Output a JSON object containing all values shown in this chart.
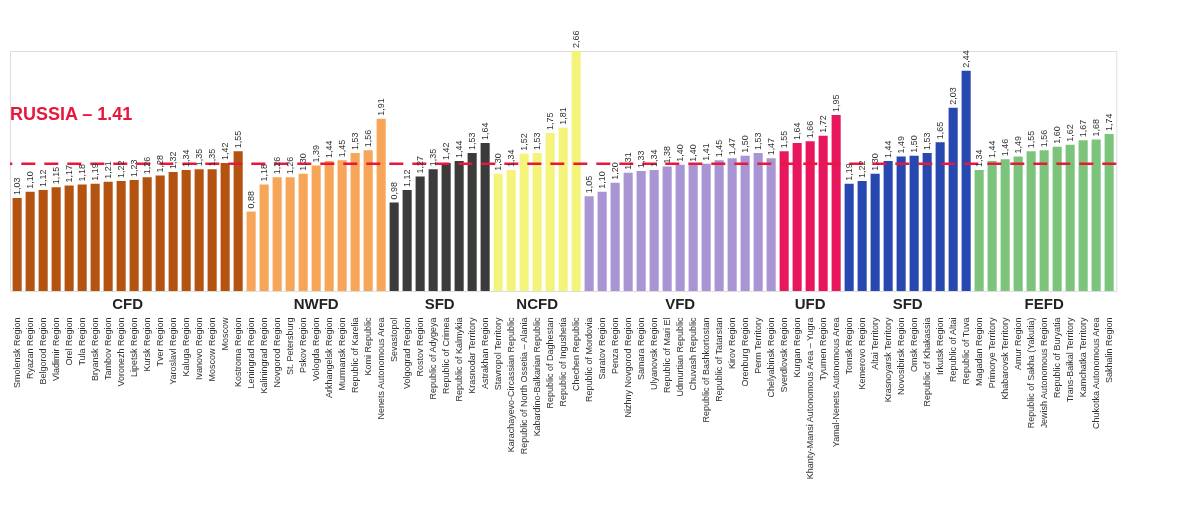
{
  "chart_data": {
    "type": "bar",
    "categories": [
      "Smolensk Region",
      "Ryazan Region",
      "Belgorod Region",
      "Vladimir Region",
      "Orel Region",
      "Tula Region",
      "Bryansk Region",
      "Tambov Region",
      "Voronezh Region",
      "Lipetsk Region",
      "Kursk Region",
      "Tver Region",
      "Yaroslavl Region",
      "Kaluga Region",
      "Ivanovo Region",
      "Moscow Region",
      "Moscow",
      "Kostroma Region",
      "Leningrad Region",
      "Kaliningrad Region",
      "Novgorod Region",
      "St. Petersburg",
      "Pskov Region",
      "Vologda Region",
      "Arkhangelsk Region",
      "Murmansk Region",
      "Republic of Karelia",
      "Komi Republic",
      "Nenets Autonomous Area",
      "Sevastopol",
      "Volgograd Region",
      "Rostov Region",
      "Republic of Adygeya",
      "Republic of Crimea",
      "Republic of Kalmykia",
      "Krasnodar Territory",
      "Astrakhan Region",
      "Stavropol Territory",
      "Karachayevo-Circassian Republic",
      "Republic of North Ossetia – Alania",
      "Kabardino-Balkarian Republic",
      "Republic of Daghestan",
      "Republic of Ingushetia",
      "Chechen Republic",
      "Republic of Mordovia",
      "Saratov Region",
      "Penza Region",
      "Nizhny Novgorod Region",
      "Samara Region",
      "Ulyanovsk Region",
      "Republic of Mari El",
      "Udmurtian Republic",
      "Chuvash Republic",
      "Republic of Bashkortostan",
      "Republic of Tatarstan",
      "Kirov Region",
      "Orenburg Region",
      "Perm Territory",
      "Chelyabinsk Region",
      "Sverdlovsk Region",
      "Kurgan Region",
      "Khanty-Mansi Autonomous Area – Yugra",
      "Tyumen Region",
      "Yamal-Nenets Autonomous Area",
      "Tomsk Region",
      "Kemerovo Region",
      "Altai Territory",
      "Krasnoyarsk Territory",
      "Novosibirsk Region",
      "Omsk Region",
      "Republic of Khakassia",
      "Irkutsk Region",
      "Republic of Altai",
      "Republic of Tuva",
      "Magadan Region",
      "Primorye Territory",
      "Khabarovsk Territory",
      "Amur Region",
      "Republic of Sakha (Yakutia)",
      "Jewish Autonomous Region",
      "Republic of Buryatia",
      "Trans-Baikal Territory",
      "Kamchatka Territory",
      "Chukotka Autonomous Area",
      "Sakhalin Region"
    ],
    "series": [
      {
        "name": "CFD",
        "color": "#b4520f",
        "values": [
          1.03,
          1.1,
          1.12,
          1.15,
          1.17,
          1.18,
          1.19,
          1.21,
          1.22,
          1.23,
          1.26,
          1.28,
          1.32,
          1.34,
          1.35,
          1.35,
          1.42,
          1.55,
          null,
          null,
          null,
          null,
          null,
          null,
          null,
          null,
          null,
          null,
          null,
          null,
          null,
          null,
          null,
          null,
          null,
          null,
          null,
          null,
          null,
          null,
          null,
          null,
          null,
          null,
          null,
          null,
          null,
          null,
          null,
          null,
          null,
          null,
          null,
          null,
          null,
          null,
          null,
          null,
          null,
          null,
          null,
          null,
          null,
          null,
          null,
          null,
          null,
          null,
          null,
          null,
          null,
          null,
          null,
          null,
          null,
          null,
          null,
          null,
          null,
          null,
          null,
          null,
          null,
          null,
          null
        ],
        "value_labels": [
          "1,03",
          "1,10",
          "1,12",
          "1,15",
          "1,17",
          "1,18",
          "1,19",
          "1,21",
          "1,22",
          "1,23",
          "1,26",
          "1,28",
          "1,32",
          "1,34",
          "1,35",
          "1,35",
          "1,42",
          "1,55",
          null,
          null,
          null,
          null,
          null,
          null,
          null,
          null,
          null,
          null,
          null,
          null,
          null,
          null,
          null,
          null,
          null,
          null,
          null,
          null,
          null,
          null,
          null,
          null,
          null,
          null,
          null,
          null,
          null,
          null,
          null,
          null,
          null,
          null,
          null,
          null,
          null,
          null,
          null,
          null,
          null,
          null,
          null,
          null,
          null,
          null,
          null,
          null,
          null,
          null,
          null,
          null,
          null,
          null,
          null,
          null,
          null,
          null,
          null,
          null,
          null,
          null,
          null,
          null,
          null,
          null,
          null
        ]
      },
      {
        "name": "NWFD",
        "color": "#f7a558",
        "values": [
          null,
          null,
          null,
          null,
          null,
          null,
          null,
          null,
          null,
          null,
          null,
          null,
          null,
          null,
          null,
          null,
          null,
          null,
          0.88,
          1.18,
          1.26,
          1.26,
          1.3,
          1.39,
          1.44,
          1.45,
          1.53,
          1.56,
          1.91,
          null,
          null,
          null,
          null,
          null,
          null,
          null,
          null,
          null,
          null,
          null,
          null,
          null,
          null,
          null,
          null,
          null,
          null,
          null,
          null,
          null,
          null,
          null,
          null,
          null,
          null,
          null,
          null,
          null,
          null,
          null,
          null,
          null,
          null,
          null,
          null,
          null,
          null,
          null,
          null,
          null,
          null,
          null,
          null,
          null,
          null,
          null,
          null,
          null,
          null,
          null,
          null,
          null,
          null,
          null,
          null
        ],
        "value_labels": [
          null,
          null,
          null,
          null,
          null,
          null,
          null,
          null,
          null,
          null,
          null,
          null,
          null,
          null,
          null,
          null,
          null,
          null,
          "0,88",
          "1,18",
          "1,26",
          "1,26",
          "1,30",
          "1,39",
          "1,44",
          "1,45",
          "1,53",
          "1,56",
          "1,91",
          null,
          null,
          null,
          null,
          null,
          null,
          null,
          null,
          null,
          null,
          null,
          null,
          null,
          null,
          null,
          null,
          null,
          null,
          null,
          null,
          null,
          null,
          null,
          null,
          null,
          null,
          null,
          null,
          null,
          null,
          null,
          null,
          null,
          null,
          null,
          null,
          null,
          null,
          null,
          null,
          null,
          null,
          null,
          null,
          null,
          null,
          null,
          null,
          null,
          null,
          null,
          null,
          null,
          null,
          null,
          null
        ]
      },
      {
        "name": "SFD",
        "color": "#3b3b3b",
        "values": [
          null,
          null,
          null,
          null,
          null,
          null,
          null,
          null,
          null,
          null,
          null,
          null,
          null,
          null,
          null,
          null,
          null,
          null,
          null,
          null,
          null,
          null,
          null,
          null,
          null,
          null,
          null,
          null,
          null,
          0.98,
          1.12,
          1.27,
          1.35,
          1.42,
          1.44,
          1.53,
          1.64,
          null,
          null,
          null,
          null,
          null,
          null,
          null,
          null,
          null,
          null,
          null,
          null,
          null,
          null,
          null,
          null,
          null,
          null,
          null,
          null,
          null,
          null,
          null,
          null,
          null,
          null,
          null,
          null,
          null,
          null,
          null,
          null,
          null,
          null,
          null,
          null,
          null,
          null,
          null,
          null,
          null,
          null,
          null,
          null,
          null,
          null,
          null,
          null
        ],
        "value_labels": [
          null,
          null,
          null,
          null,
          null,
          null,
          null,
          null,
          null,
          null,
          null,
          null,
          null,
          null,
          null,
          null,
          null,
          null,
          null,
          null,
          null,
          null,
          null,
          null,
          null,
          null,
          null,
          null,
          null,
          "0,98",
          "1,12",
          "1,27",
          "1,35",
          "1,42",
          "1,44",
          "1,53",
          "1,64",
          null,
          null,
          null,
          null,
          null,
          null,
          null,
          null,
          null,
          null,
          null,
          null,
          null,
          null,
          null,
          null,
          null,
          null,
          null,
          null,
          null,
          null,
          null,
          null,
          null,
          null,
          null,
          null,
          null,
          null,
          null,
          null,
          null,
          null,
          null,
          null,
          null,
          null,
          null,
          null,
          null,
          null,
          null,
          null,
          null,
          null,
          null,
          null
        ]
      },
      {
        "name": "NCFD",
        "color": "#f4f47a",
        "values": [
          null,
          null,
          null,
          null,
          null,
          null,
          null,
          null,
          null,
          null,
          null,
          null,
          null,
          null,
          null,
          null,
          null,
          null,
          null,
          null,
          null,
          null,
          null,
          null,
          null,
          null,
          null,
          null,
          null,
          null,
          null,
          null,
          null,
          null,
          null,
          null,
          null,
          1.3,
          1.34,
          1.52,
          1.53,
          1.75,
          1.81,
          2.66,
          null,
          null,
          null,
          null,
          null,
          null,
          null,
          null,
          null,
          null,
          null,
          null,
          null,
          null,
          null,
          null,
          null,
          null,
          null,
          null,
          null,
          null,
          null,
          null,
          null,
          null,
          null,
          null,
          null,
          null,
          null,
          null,
          null,
          null,
          null,
          null,
          null,
          null,
          null,
          null,
          null
        ],
        "value_labels": [
          null,
          null,
          null,
          null,
          null,
          null,
          null,
          null,
          null,
          null,
          null,
          null,
          null,
          null,
          null,
          null,
          null,
          null,
          null,
          null,
          null,
          null,
          null,
          null,
          null,
          null,
          null,
          null,
          null,
          null,
          null,
          null,
          null,
          null,
          null,
          null,
          null,
          "1,30",
          "1,34",
          "1,52",
          "1,53",
          "1,75",
          "1,81",
          "2,66",
          null,
          null,
          null,
          null,
          null,
          null,
          null,
          null,
          null,
          null,
          null,
          null,
          null,
          null,
          null,
          null,
          null,
          null,
          null,
          null,
          null,
          null,
          null,
          null,
          null,
          null,
          null,
          null,
          null,
          null,
          null,
          null,
          null,
          null,
          null,
          null,
          null,
          null,
          null,
          null,
          null
        ]
      },
      {
        "name": "VFD",
        "color": "#a995d4",
        "values": [
          null,
          null,
          null,
          null,
          null,
          null,
          null,
          null,
          null,
          null,
          null,
          null,
          null,
          null,
          null,
          null,
          null,
          null,
          null,
          null,
          null,
          null,
          null,
          null,
          null,
          null,
          null,
          null,
          null,
          null,
          null,
          null,
          null,
          null,
          null,
          null,
          null,
          null,
          null,
          null,
          null,
          null,
          null,
          null,
          1.05,
          1.1,
          1.2,
          1.31,
          1.33,
          1.34,
          1.38,
          1.4,
          1.4,
          1.41,
          1.45,
          1.47,
          1.5,
          1.53,
          1.47,
          null,
          null,
          null,
          null,
          null,
          null,
          null,
          null,
          null,
          null,
          null,
          null,
          null,
          null,
          null,
          null,
          null,
          null,
          null,
          null,
          null,
          null,
          null,
          null,
          null,
          null
        ],
        "value_labels": [
          null,
          null,
          null,
          null,
          null,
          null,
          null,
          null,
          null,
          null,
          null,
          null,
          null,
          null,
          null,
          null,
          null,
          null,
          null,
          null,
          null,
          null,
          null,
          null,
          null,
          null,
          null,
          null,
          null,
          null,
          null,
          null,
          null,
          null,
          null,
          null,
          null,
          null,
          null,
          null,
          null,
          null,
          null,
          null,
          "1,05",
          "1,10",
          "1,20",
          "1,31",
          "1,33",
          "1,34",
          "1,38",
          "1,40",
          "1,40",
          "1,41",
          "1,45",
          "1,47",
          "1,50",
          "1,53",
          "1,47",
          null,
          null,
          null,
          null,
          null,
          null,
          null,
          null,
          null,
          null,
          null,
          null,
          null,
          null,
          null,
          null,
          null,
          null,
          null,
          null,
          null,
          null,
          null,
          null,
          null,
          null
        ]
      },
      {
        "name": "UFD",
        "color": "#e8175d",
        "values": [
          null,
          null,
          null,
          null,
          null,
          null,
          null,
          null,
          null,
          null,
          null,
          null,
          null,
          null,
          null,
          null,
          null,
          null,
          null,
          null,
          null,
          null,
          null,
          null,
          null,
          null,
          null,
          null,
          null,
          null,
          null,
          null,
          null,
          null,
          null,
          null,
          null,
          null,
          null,
          null,
          null,
          null,
          null,
          null,
          null,
          null,
          null,
          null,
          null,
          null,
          null,
          null,
          null,
          null,
          null,
          null,
          null,
          null,
          null,
          1.55,
          1.64,
          1.66,
          1.72,
          1.95,
          null,
          null,
          null,
          null,
          null,
          null,
          null,
          null,
          null,
          null,
          null,
          null,
          null,
          null,
          null,
          null,
          null,
          null,
          null,
          null,
          null
        ],
        "value_labels": [
          null,
          null,
          null,
          null,
          null,
          null,
          null,
          null,
          null,
          null,
          null,
          null,
          null,
          null,
          null,
          null,
          null,
          null,
          null,
          null,
          null,
          null,
          null,
          null,
          null,
          null,
          null,
          null,
          null,
          null,
          null,
          null,
          null,
          null,
          null,
          null,
          null,
          null,
          null,
          null,
          null,
          null,
          null,
          null,
          null,
          null,
          null,
          null,
          null,
          null,
          null,
          null,
          null,
          null,
          null,
          null,
          null,
          null,
          null,
          "1,55",
          "1,64",
          "1,66",
          "1,72",
          "1,95",
          null,
          null,
          null,
          null,
          null,
          null,
          null,
          null,
          null,
          null,
          null,
          null,
          null,
          null,
          null,
          null,
          null,
          null,
          null,
          null,
          null
        ]
      },
      {
        "name": "SFD",
        "color": "#2748b0",
        "values": [
          null,
          null,
          null,
          null,
          null,
          null,
          null,
          null,
          null,
          null,
          null,
          null,
          null,
          null,
          null,
          null,
          null,
          null,
          null,
          null,
          null,
          null,
          null,
          null,
          null,
          null,
          null,
          null,
          null,
          null,
          null,
          null,
          null,
          null,
          null,
          null,
          null,
          null,
          null,
          null,
          null,
          null,
          null,
          null,
          null,
          null,
          null,
          null,
          null,
          null,
          null,
          null,
          null,
          null,
          null,
          null,
          null,
          null,
          null,
          null,
          null,
          null,
          null,
          null,
          1.19,
          1.22,
          1.3,
          1.44,
          1.49,
          1.5,
          1.53,
          1.65,
          2.03,
          2.44,
          null,
          null,
          null,
          null,
          null,
          null,
          null,
          null,
          null,
          null,
          null
        ],
        "value_labels": [
          null,
          null,
          null,
          null,
          null,
          null,
          null,
          null,
          null,
          null,
          null,
          null,
          null,
          null,
          null,
          null,
          null,
          null,
          null,
          null,
          null,
          null,
          null,
          null,
          null,
          null,
          null,
          null,
          null,
          null,
          null,
          null,
          null,
          null,
          null,
          null,
          null,
          null,
          null,
          null,
          null,
          null,
          null,
          null,
          null,
          null,
          null,
          null,
          null,
          null,
          null,
          null,
          null,
          null,
          null,
          null,
          null,
          null,
          null,
          null,
          null,
          null,
          null,
          null,
          "1,19",
          "1,22",
          "1,30",
          "1,44",
          "1,49",
          "1,50",
          "1,53",
          "1,65",
          "2,03",
          "2,44",
          null,
          null,
          null,
          null,
          null,
          null,
          null,
          null,
          null,
          null,
          null
        ]
      },
      {
        "name": "FEFD",
        "color": "#7cc47c",
        "values": [
          null,
          null,
          null,
          null,
          null,
          null,
          null,
          null,
          null,
          null,
          null,
          null,
          null,
          null,
          null,
          null,
          null,
          null,
          null,
          null,
          null,
          null,
          null,
          null,
          null,
          null,
          null,
          null,
          null,
          null,
          null,
          null,
          null,
          null,
          null,
          null,
          null,
          null,
          null,
          null,
          null,
          null,
          null,
          null,
          null,
          null,
          null,
          null,
          null,
          null,
          null,
          null,
          null,
          null,
          null,
          null,
          null,
          null,
          null,
          null,
          null,
          null,
          null,
          null,
          null,
          null,
          null,
          null,
          null,
          null,
          null,
          null,
          null,
          null,
          1.34,
          1.44,
          1.46,
          1.49,
          1.55,
          1.56,
          1.6,
          1.62,
          1.67,
          1.68,
          1.74
        ],
        "value_labels": [
          null,
          null,
          null,
          null,
          null,
          null,
          null,
          null,
          null,
          null,
          null,
          null,
          null,
          null,
          null,
          null,
          null,
          null,
          null,
          null,
          null,
          null,
          null,
          null,
          null,
          null,
          null,
          null,
          null,
          null,
          null,
          null,
          null,
          null,
          null,
          null,
          null,
          null,
          null,
          null,
          null,
          null,
          null,
          null,
          null,
          null,
          null,
          null,
          null,
          null,
          null,
          null,
          null,
          null,
          null,
          null,
          null,
          null,
          null,
          null,
          null,
          null,
          null,
          null,
          null,
          null,
          null,
          null,
          null,
          null,
          null,
          null,
          null,
          null,
          "1,34",
          "1,44",
          "1,46",
          "1,49",
          "1,55",
          "1,56",
          "1,60",
          "1,62",
          "1,67",
          "1,68",
          "1,74"
        ]
      }
    ],
    "ref_lines": [
      {
        "axis": "y",
        "value": 1.41,
        "label": "RUSSIA – 1.41",
        "color": "#e8173c",
        "line_style": "dashed"
      }
    ]
  }
}
